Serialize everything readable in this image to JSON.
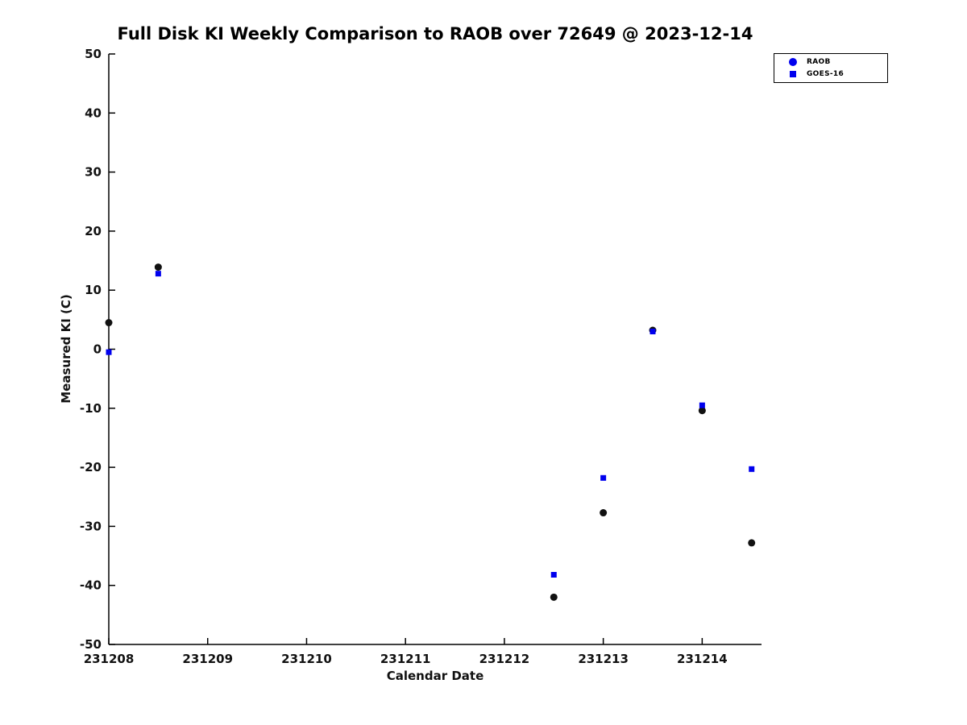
{
  "title": "Full Disk KI Weekly Comparison to RAOB over 72649 @ 2023-12-14",
  "xlabel": "Calendar Date",
  "ylabel": "Measured KI (C)",
  "legend": {
    "items": [
      {
        "label": "RAOB",
        "marker": "circle",
        "color": "#0000ee"
      },
      {
        "label": "GOES-16",
        "marker": "square",
        "color": "#0000ee"
      }
    ]
  },
  "chart_data": {
    "type": "scatter",
    "title": "Full Disk KI Weekly Comparison to RAOB over 72649 @ 2023-12-14",
    "xlabel": "Calendar Date",
    "ylabel": "Measured KI (C)",
    "xlim": [
      231208,
      231214.6
    ],
    "ylim": [
      -50,
      50
    ],
    "x_ticks": [
      231208,
      231209,
      231210,
      231211,
      231212,
      231213,
      231214
    ],
    "y_ticks": [
      -50,
      -40,
      -30,
      -20,
      -10,
      0,
      10,
      20,
      30,
      40,
      50
    ],
    "grid": false,
    "legend_position": "top-right",
    "series": [
      {
        "name": "RAOB",
        "marker": "circle",
        "color": "#111111",
        "x": [
          231208.0,
          231208.5,
          231212.5,
          231213.0,
          231213.5,
          231214.0,
          231214.5
        ],
        "y": [
          4.5,
          13.9,
          -42.0,
          -27.7,
          3.2,
          -10.4,
          -32.8
        ]
      },
      {
        "name": "GOES-16",
        "marker": "square",
        "color": "#0000ee",
        "x": [
          231208.0,
          231208.5,
          231212.5,
          231213.0,
          231213.5,
          231214.0,
          231214.5
        ],
        "y": [
          -0.5,
          12.8,
          -38.2,
          -21.8,
          3.0,
          -9.5,
          -20.3
        ]
      }
    ]
  }
}
